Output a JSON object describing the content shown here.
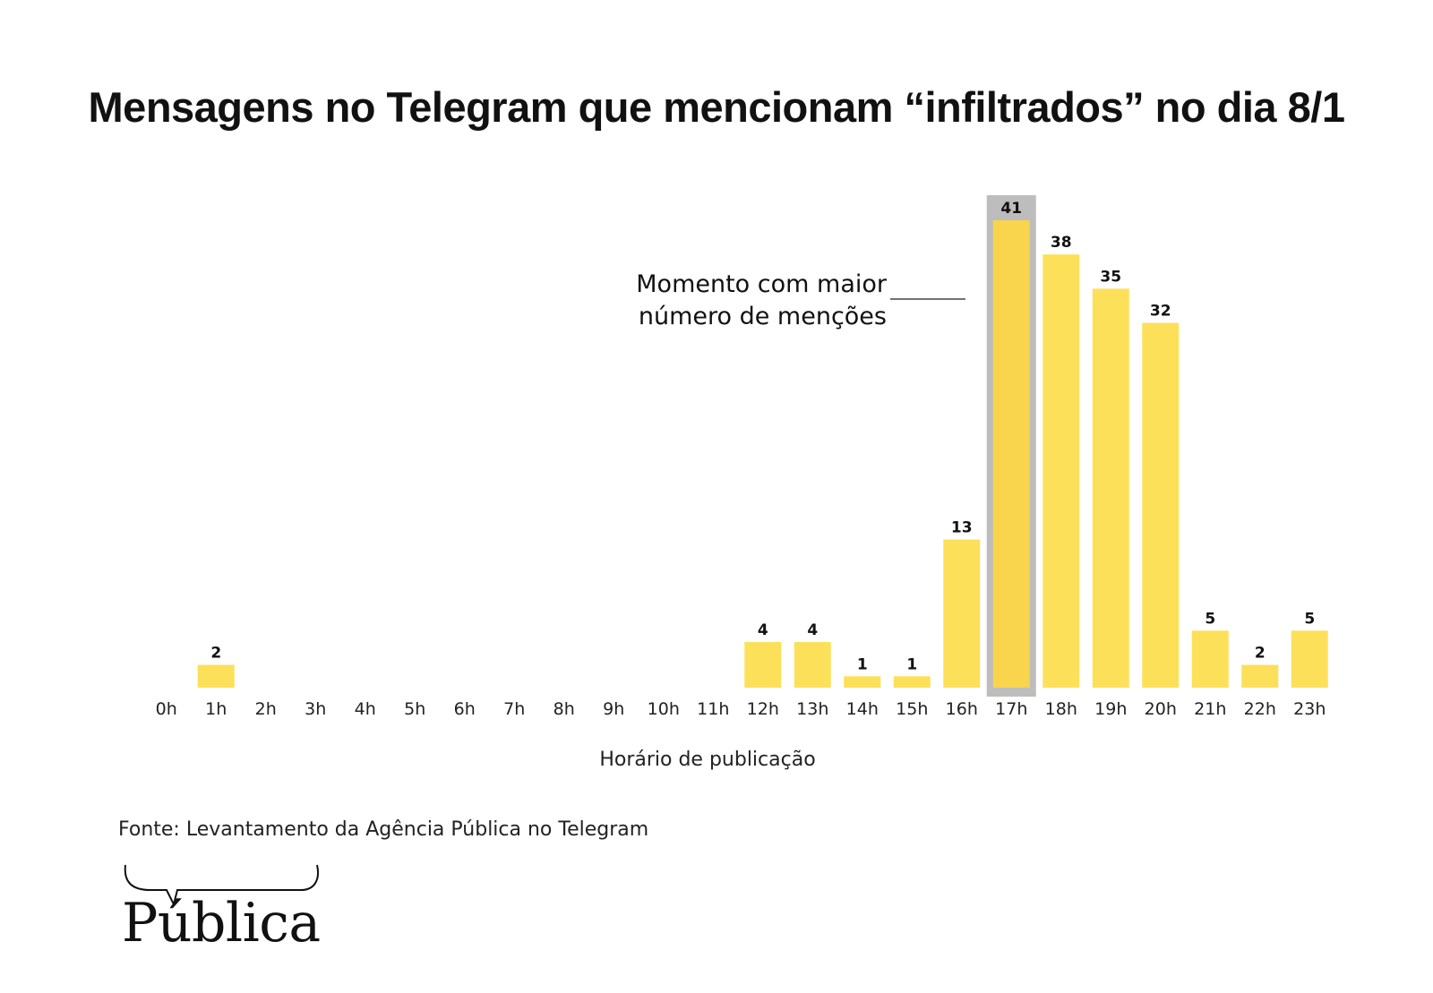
{
  "chart_data": {
    "type": "bar",
    "title": "Mensagens no Telegram que mencionam “infiltrados” no dia 8/1",
    "xlabel": "Horário de publicação",
    "ylabel": "",
    "categories": [
      "0h",
      "1h",
      "2h",
      "3h",
      "4h",
      "5h",
      "6h",
      "7h",
      "8h",
      "9h",
      "10h",
      "11h",
      "12h",
      "13h",
      "14h",
      "15h",
      "16h",
      "17h",
      "18h",
      "19h",
      "20h",
      "21h",
      "22h",
      "23h"
    ],
    "values": [
      0,
      2,
      0,
      0,
      0,
      0,
      0,
      0,
      0,
      0,
      0,
      0,
      4,
      4,
      1,
      1,
      13,
      41,
      38,
      35,
      32,
      5,
      2,
      5
    ],
    "data_labels": [
      "",
      "2",
      "",
      "",
      "",
      "",
      "",
      "",
      "",
      "",
      "",
      "",
      "4",
      "4",
      "1",
      "1",
      "13",
      "41",
      "38",
      "35",
      "32",
      "5",
      "2",
      "5"
    ],
    "ylim": [
      0,
      41
    ],
    "grid": false,
    "highlight_category": "17h",
    "annotation": {
      "lines": [
        "Momento com maior",
        "número de menções"
      ],
      "target": "17h"
    },
    "colors": {
      "bar": "#FDE05A",
      "highlight_bar": "#F8D54C",
      "highlight_box": "#BDBDBD",
      "text": "#111111"
    }
  },
  "source": "Fonte: Levantamento da Agência Pública no Telegram",
  "logo": {
    "text": "Pública"
  }
}
